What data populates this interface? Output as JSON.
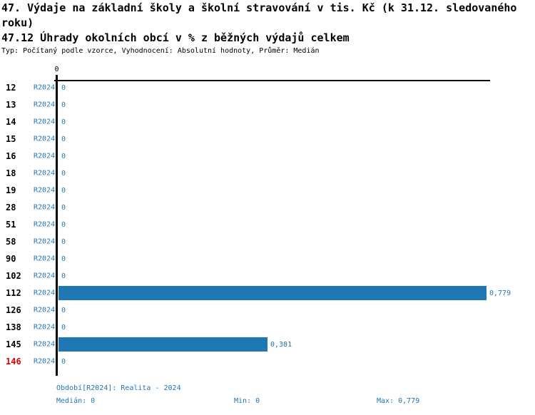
{
  "page": {
    "title": "47. Výdaje na základní školy a školní stravování v tis. Kč (k 31.12. sledovaného roku)",
    "subtitle": "47.12 Úhrady okolních obcí v % z běžných výdajů celkem",
    "meta": "Typ: Počítaný podle vzorce, Vyhodnocení: Absolutní hodnoty, Průměr: Medián"
  },
  "chart_data": {
    "type": "bar",
    "orientation": "horizontal",
    "title": "47. Výdaje na základní školy a školní stravování v tis. Kč (k 31.12. sledovaného roku)",
    "subtitle": "47.12 Úhrady okolních obcí v % z běžných výdajů celkem",
    "series_name": "R2024",
    "x_axis": {
      "tick_labels": [
        "0"
      ],
      "range": [
        0,
        0.81
      ],
      "grid": false
    },
    "categories": [
      "12",
      "13",
      "14",
      "15",
      "16",
      "18",
      "19",
      "28",
      "51",
      "58",
      "90",
      "102",
      "112",
      "126",
      "138",
      "145",
      "146"
    ],
    "values": [
      0,
      0,
      0,
      0,
      0,
      0,
      0,
      0,
      0,
      0,
      0,
      0,
      0.779,
      0,
      0,
      0.381,
      0
    ],
    "highlighted_category": "146",
    "median": 0,
    "min": 0,
    "max": 0.779,
    "rows": [
      {
        "category": "12",
        "period": "R2024",
        "value": 0,
        "value_label": "0",
        "highlight": false
      },
      {
        "category": "13",
        "period": "R2024",
        "value": 0,
        "value_label": "0",
        "highlight": false
      },
      {
        "category": "14",
        "period": "R2024",
        "value": 0,
        "value_label": "0",
        "highlight": false
      },
      {
        "category": "15",
        "period": "R2024",
        "value": 0,
        "value_label": "0",
        "highlight": false
      },
      {
        "category": "16",
        "period": "R2024",
        "value": 0,
        "value_label": "0",
        "highlight": false
      },
      {
        "category": "18",
        "period": "R2024",
        "value": 0,
        "value_label": "0",
        "highlight": false
      },
      {
        "category": "19",
        "period": "R2024",
        "value": 0,
        "value_label": "0",
        "highlight": false
      },
      {
        "category": "28",
        "period": "R2024",
        "value": 0,
        "value_label": "0",
        "highlight": false
      },
      {
        "category": "51",
        "period": "R2024",
        "value": 0,
        "value_label": "0",
        "highlight": false
      },
      {
        "category": "58",
        "period": "R2024",
        "value": 0,
        "value_label": "0",
        "highlight": false
      },
      {
        "category": "90",
        "period": "R2024",
        "value": 0,
        "value_label": "0",
        "highlight": false
      },
      {
        "category": "102",
        "period": "R2024",
        "value": 0,
        "value_label": "0",
        "highlight": false
      },
      {
        "category": "112",
        "period": "R2024",
        "value": 0.779,
        "value_label": "0,779",
        "highlight": false
      },
      {
        "category": "126",
        "period": "R2024",
        "value": 0,
        "value_label": "0",
        "highlight": false
      },
      {
        "category": "138",
        "period": "R2024",
        "value": 0,
        "value_label": "0",
        "highlight": false
      },
      {
        "category": "145",
        "period": "R2024",
        "value": 0.381,
        "value_label": "0,381",
        "highlight": false
      },
      {
        "category": "146",
        "period": "R2024",
        "value": 0,
        "value_label": "0",
        "highlight": true
      }
    ]
  },
  "footer": {
    "period": "Období[R2024]: Realita - 2024",
    "median": "Medián: 0",
    "min": "Min: 0",
    "max": "Max: 0,779"
  },
  "colors": {
    "bar_blue": "#1f77b4",
    "text_blue": "#1f77b4",
    "highlight_red": "#e00000",
    "axis_black": "#000000",
    "background": "#ffffff"
  }
}
